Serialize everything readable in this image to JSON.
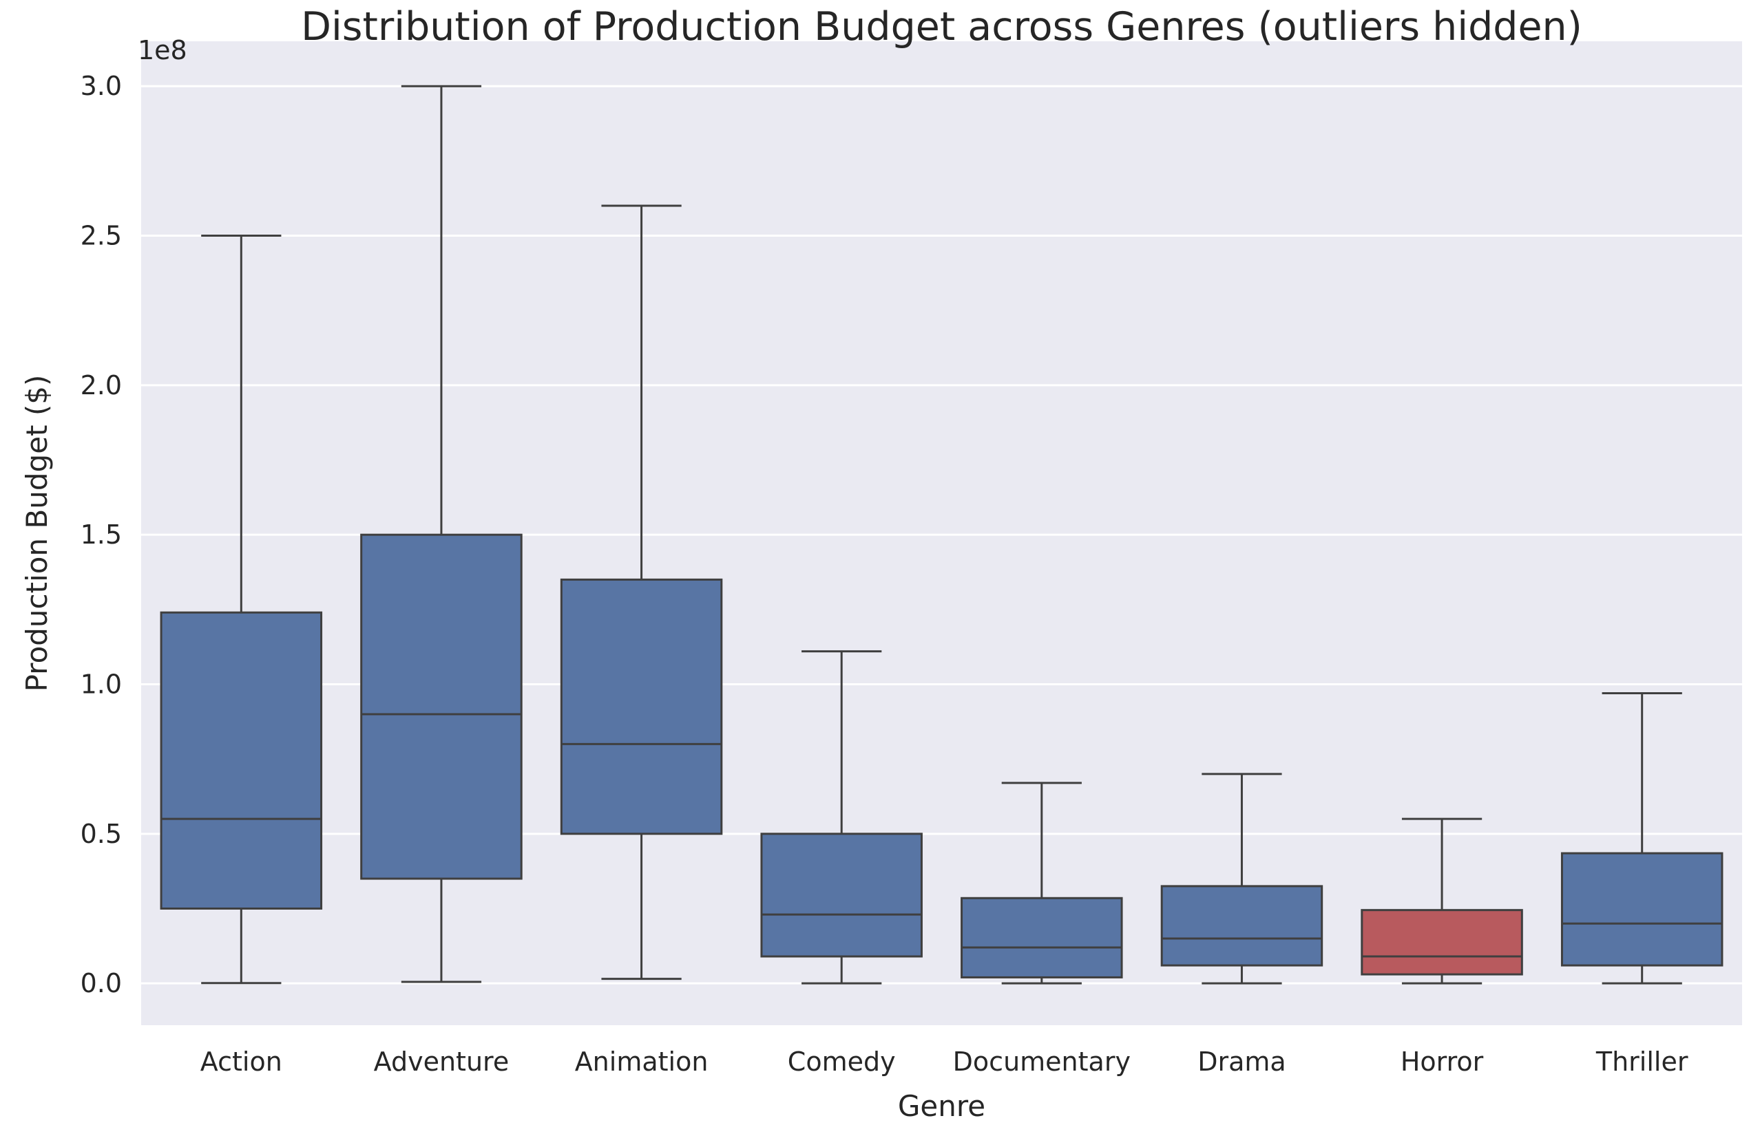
{
  "chart_data": {
    "type": "box",
    "title": "Distribution of Production Budget across Genres (outliers hidden)",
    "xlabel": "Genre",
    "ylabel": "Production Budget ($)",
    "y_offset_label": "1e8",
    "y_scale": 100000000,
    "ylim": [
      -14000000,
      315000000
    ],
    "yticks": [
      0,
      50000000,
      100000000,
      150000000,
      200000000,
      250000000,
      300000000
    ],
    "ytick_labels": [
      "0.0",
      "0.5",
      "1.0",
      "1.5",
      "2.0",
      "2.5",
      "3.0"
    ],
    "grid": true,
    "categories": [
      "Action",
      "Adventure",
      "Animation",
      "Comedy",
      "Documentary",
      "Drama",
      "Horror",
      "Thriller"
    ],
    "boxes": [
      {
        "category": "Action",
        "whisker_low": 100000,
        "q1": 25000000,
        "median": 55000000,
        "q3": 124000000,
        "whisker_high": 250000000,
        "color": "#5875a4"
      },
      {
        "category": "Adventure",
        "whisker_low": 500000,
        "q1": 35000000,
        "median": 90000000,
        "q3": 150000000,
        "whisker_high": 300000000,
        "color": "#5875a4"
      },
      {
        "category": "Animation",
        "whisker_low": 1500000,
        "q1": 50000000,
        "median": 80000000,
        "q3": 135000000,
        "whisker_high": 260000000,
        "color": "#5875a4"
      },
      {
        "category": "Comedy",
        "whisker_low": 0,
        "q1": 9000000,
        "median": 23000000,
        "q3": 50000000,
        "whisker_high": 111000000,
        "color": "#5875a4"
      },
      {
        "category": "Documentary",
        "whisker_low": 0,
        "q1": 2000000,
        "median": 12000000,
        "q3": 28500000,
        "whisker_high": 67000000,
        "color": "#5875a4"
      },
      {
        "category": "Drama",
        "whisker_low": 0,
        "q1": 6000000,
        "median": 15000000,
        "q3": 32500000,
        "whisker_high": 70000000,
        "color": "#5875a4"
      },
      {
        "category": "Horror",
        "whisker_low": 0,
        "q1": 3000000,
        "median": 9000000,
        "q3": 24500000,
        "whisker_high": 55000000,
        "color": "#b85a5e"
      },
      {
        "category": "Thriller",
        "whisker_low": 0,
        "q1": 6000000,
        "median": 20000000,
        "q3": 43500000,
        "whisker_high": 97000000,
        "color": "#5875a4"
      }
    ],
    "colors": {
      "plot_background": "#eaeaf2",
      "grid": "#ffffff",
      "box_edge": "#3f3f3f",
      "default_box": "#5875a4",
      "highlight_box": "#b85a5e"
    }
  }
}
